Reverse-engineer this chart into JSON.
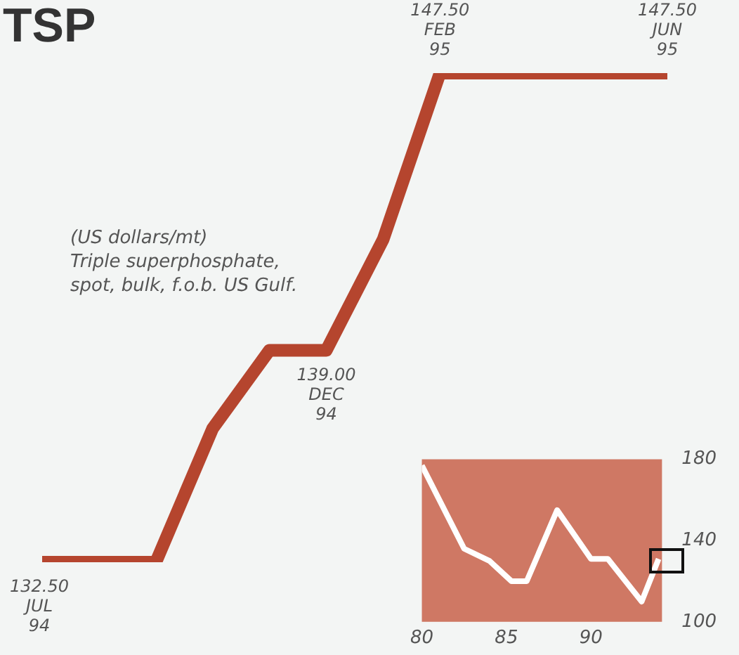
{
  "chart_data": [
    {
      "type": "line",
      "title": "TSP",
      "annotations": [
        "(US dollars/mt)\nTriple superphosphate,\nspot, bulk, f.o.b. US Gulf."
      ],
      "categories": [
        "JUL 94",
        null,
        null,
        null,
        null,
        "DEC 94",
        null,
        "FEB 95",
        null,
        null,
        null,
        "JUN 95"
      ],
      "series": [
        {
          "color": "#b5452e",
          "values": [
            132.5,
            132.5,
            132.5,
            136.6,
            139.0,
            139.0,
            142.4,
            147.5,
            147.5,
            147.5,
            147.5,
            147.5
          ],
          "value_labels": [
            "132.50",
            null,
            null,
            null,
            null,
            "139.00",
            null,
            "147.50",
            null,
            null,
            null,
            "147.50"
          ]
        }
      ],
      "legend": false,
      "grid": false,
      "tick_labels": false,
      "marker": "none"
    },
    {
      "type": "line",
      "x": [
        80,
        82.5,
        84,
        85.3,
        86.2,
        88,
        90,
        91,
        93,
        94
      ],
      "series": [
        {
          "color": "#ffffff",
          "values": [
            177,
            136,
            130,
            120,
            120,
            155,
            131,
            131,
            110,
            131
          ]
        }
      ],
      "xlim": [
        80,
        94.2
      ],
      "xticks": [
        80,
        85,
        90
      ],
      "ylim": [
        100,
        180
      ],
      "yticks": [
        100,
        140,
        180
      ],
      "legend": false,
      "grid": false,
      "marker": "none"
    }
  ]
}
